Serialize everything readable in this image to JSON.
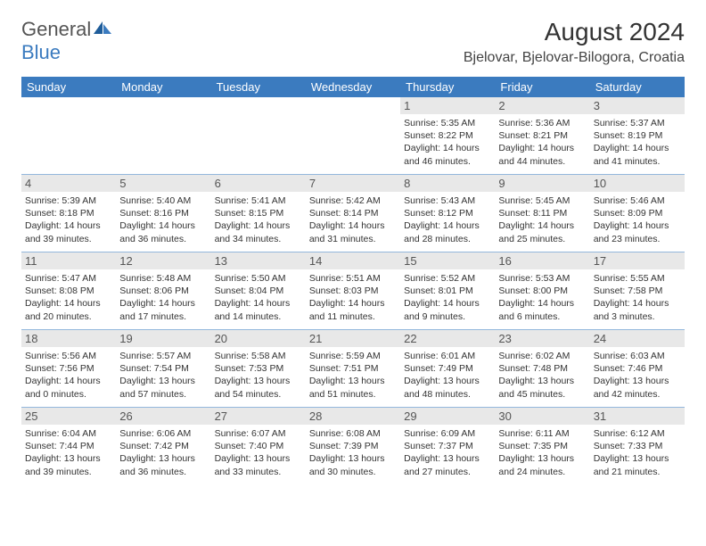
{
  "logo": {
    "general": "General",
    "blue": "Blue"
  },
  "title": "August 2024",
  "location": "Bjelovar, Bjelovar-Bilogora, Croatia",
  "dayHeaders": [
    "Sunday",
    "Monday",
    "Tuesday",
    "Wednesday",
    "Thursday",
    "Friday",
    "Saturday"
  ],
  "colors": {
    "headerBar": "#3b7bbf",
    "daynumBg": "#e8e8e8",
    "text": "#333333",
    "logoGray": "#555555",
    "logoBlue": "#3b7bbf"
  },
  "weeks": [
    [
      {
        "day": "",
        "lines": []
      },
      {
        "day": "",
        "lines": []
      },
      {
        "day": "",
        "lines": []
      },
      {
        "day": "",
        "lines": []
      },
      {
        "day": "1",
        "lines": [
          "Sunrise: 5:35 AM",
          "Sunset: 8:22 PM",
          "Daylight: 14 hours and 46 minutes."
        ]
      },
      {
        "day": "2",
        "lines": [
          "Sunrise: 5:36 AM",
          "Sunset: 8:21 PM",
          "Daylight: 14 hours and 44 minutes."
        ]
      },
      {
        "day": "3",
        "lines": [
          "Sunrise: 5:37 AM",
          "Sunset: 8:19 PM",
          "Daylight: 14 hours and 41 minutes."
        ]
      }
    ],
    [
      {
        "day": "4",
        "lines": [
          "Sunrise: 5:39 AM",
          "Sunset: 8:18 PM",
          "Daylight: 14 hours and 39 minutes."
        ]
      },
      {
        "day": "5",
        "lines": [
          "Sunrise: 5:40 AM",
          "Sunset: 8:16 PM",
          "Daylight: 14 hours and 36 minutes."
        ]
      },
      {
        "day": "6",
        "lines": [
          "Sunrise: 5:41 AM",
          "Sunset: 8:15 PM",
          "Daylight: 14 hours and 34 minutes."
        ]
      },
      {
        "day": "7",
        "lines": [
          "Sunrise: 5:42 AM",
          "Sunset: 8:14 PM",
          "Daylight: 14 hours and 31 minutes."
        ]
      },
      {
        "day": "8",
        "lines": [
          "Sunrise: 5:43 AM",
          "Sunset: 8:12 PM",
          "Daylight: 14 hours and 28 minutes."
        ]
      },
      {
        "day": "9",
        "lines": [
          "Sunrise: 5:45 AM",
          "Sunset: 8:11 PM",
          "Daylight: 14 hours and 25 minutes."
        ]
      },
      {
        "day": "10",
        "lines": [
          "Sunrise: 5:46 AM",
          "Sunset: 8:09 PM",
          "Daylight: 14 hours and 23 minutes."
        ]
      }
    ],
    [
      {
        "day": "11",
        "lines": [
          "Sunrise: 5:47 AM",
          "Sunset: 8:08 PM",
          "Daylight: 14 hours and 20 minutes."
        ]
      },
      {
        "day": "12",
        "lines": [
          "Sunrise: 5:48 AM",
          "Sunset: 8:06 PM",
          "Daylight: 14 hours and 17 minutes."
        ]
      },
      {
        "day": "13",
        "lines": [
          "Sunrise: 5:50 AM",
          "Sunset: 8:04 PM",
          "Daylight: 14 hours and 14 minutes."
        ]
      },
      {
        "day": "14",
        "lines": [
          "Sunrise: 5:51 AM",
          "Sunset: 8:03 PM",
          "Daylight: 14 hours and 11 minutes."
        ]
      },
      {
        "day": "15",
        "lines": [
          "Sunrise: 5:52 AM",
          "Sunset: 8:01 PM",
          "Daylight: 14 hours and 9 minutes."
        ]
      },
      {
        "day": "16",
        "lines": [
          "Sunrise: 5:53 AM",
          "Sunset: 8:00 PM",
          "Daylight: 14 hours and 6 minutes."
        ]
      },
      {
        "day": "17",
        "lines": [
          "Sunrise: 5:55 AM",
          "Sunset: 7:58 PM",
          "Daylight: 14 hours and 3 minutes."
        ]
      }
    ],
    [
      {
        "day": "18",
        "lines": [
          "Sunrise: 5:56 AM",
          "Sunset: 7:56 PM",
          "Daylight: 14 hours and 0 minutes."
        ]
      },
      {
        "day": "19",
        "lines": [
          "Sunrise: 5:57 AM",
          "Sunset: 7:54 PM",
          "Daylight: 13 hours and 57 minutes."
        ]
      },
      {
        "day": "20",
        "lines": [
          "Sunrise: 5:58 AM",
          "Sunset: 7:53 PM",
          "Daylight: 13 hours and 54 minutes."
        ]
      },
      {
        "day": "21",
        "lines": [
          "Sunrise: 5:59 AM",
          "Sunset: 7:51 PM",
          "Daylight: 13 hours and 51 minutes."
        ]
      },
      {
        "day": "22",
        "lines": [
          "Sunrise: 6:01 AM",
          "Sunset: 7:49 PM",
          "Daylight: 13 hours and 48 minutes."
        ]
      },
      {
        "day": "23",
        "lines": [
          "Sunrise: 6:02 AM",
          "Sunset: 7:48 PM",
          "Daylight: 13 hours and 45 minutes."
        ]
      },
      {
        "day": "24",
        "lines": [
          "Sunrise: 6:03 AM",
          "Sunset: 7:46 PM",
          "Daylight: 13 hours and 42 minutes."
        ]
      }
    ],
    [
      {
        "day": "25",
        "lines": [
          "Sunrise: 6:04 AM",
          "Sunset: 7:44 PM",
          "Daylight: 13 hours and 39 minutes."
        ]
      },
      {
        "day": "26",
        "lines": [
          "Sunrise: 6:06 AM",
          "Sunset: 7:42 PM",
          "Daylight: 13 hours and 36 minutes."
        ]
      },
      {
        "day": "27",
        "lines": [
          "Sunrise: 6:07 AM",
          "Sunset: 7:40 PM",
          "Daylight: 13 hours and 33 minutes."
        ]
      },
      {
        "day": "28",
        "lines": [
          "Sunrise: 6:08 AM",
          "Sunset: 7:39 PM",
          "Daylight: 13 hours and 30 minutes."
        ]
      },
      {
        "day": "29",
        "lines": [
          "Sunrise: 6:09 AM",
          "Sunset: 7:37 PM",
          "Daylight: 13 hours and 27 minutes."
        ]
      },
      {
        "day": "30",
        "lines": [
          "Sunrise: 6:11 AM",
          "Sunset: 7:35 PM",
          "Daylight: 13 hours and 24 minutes."
        ]
      },
      {
        "day": "31",
        "lines": [
          "Sunrise: 6:12 AM",
          "Sunset: 7:33 PM",
          "Daylight: 13 hours and 21 minutes."
        ]
      }
    ]
  ]
}
